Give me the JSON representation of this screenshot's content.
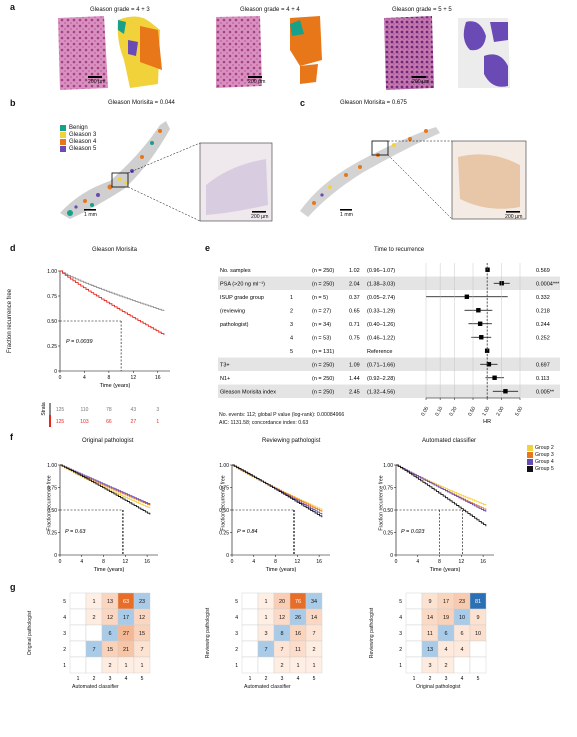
{
  "colors": {
    "benign": "#17a08a",
    "g3": "#f2d23a",
    "g4": "#e8771a",
    "g5": "#6a4bb5",
    "red": "#e8261e",
    "grey": "#8c8c8c",
    "he": "#b7508f"
  },
  "panel_a": {
    "label": "a",
    "titles": [
      "Gleason grade = 4 + 3",
      "Gleason grade = 4 + 4",
      "Gleason grade = 5 + 5"
    ],
    "scale": "200 µm"
  },
  "panel_b": {
    "label": "b",
    "title": "Gleason Morisita = 0.044",
    "legend": [
      "Benign",
      "Gleason 3",
      "Gleason 4",
      "Gleason 5"
    ],
    "scale_main": "1 mm",
    "scale_inset": "200 µm"
  },
  "panel_c": {
    "label": "c",
    "title": "Gleason Morisita = 0.675",
    "scale_main": "1 mm",
    "scale_inset": "200 µm"
  },
  "panel_d": {
    "label": "d",
    "title": "Gleason Morisita",
    "ylabel": "Fraction recurrence free",
    "xlabel": "Time (years)",
    "pvalue": "P = 0.0039",
    "strata_label": "Strata",
    "yticks": [
      "0",
      "0.25",
      "0.50",
      "0.75",
      "1.00"
    ],
    "xticks": [
      "0",
      "4",
      "8",
      "12",
      "16"
    ],
    "risk_grey": [
      "125",
      "110",
      "78",
      "43",
      "3"
    ],
    "risk_red": [
      "125",
      "103",
      "66",
      "27",
      "1"
    ]
  },
  "panel_e": {
    "label": "e",
    "title": "Time to recurrence",
    "xlabel": "HR",
    "rows": [
      {
        "name": "No. samples",
        "sub": "",
        "n": "(n = 250)",
        "hr": "1.02",
        "ci": "(0.96–1.07)",
        "p": "0.569",
        "shade": false,
        "est": 1.02,
        "lo": 0.96,
        "hi": 1.07
      },
      {
        "name": "PSA (>20 ng ml⁻¹)",
        "sub": "",
        "n": "(n = 250)",
        "hr": "2.04",
        "ci": "(1.38–3.03)",
        "p": "0.0004***",
        "shade": true,
        "est": 2.04,
        "lo": 1.38,
        "hi": 3.03
      },
      {
        "name": "ISUP grade group",
        "sub": "1",
        "n": "(n = 5)",
        "hr": "0.37",
        "ci": "(0.05–2.74)",
        "p": "0.332",
        "shade": false,
        "est": 0.37,
        "lo": 0.05,
        "hi": 2.74
      },
      {
        "name": "(reviewing",
        "sub": "2",
        "n": "(n = 27)",
        "hr": "0.65",
        "ci": "(0.33–1.29)",
        "p": "0.218",
        "shade": false,
        "est": 0.65,
        "lo": 0.33,
        "hi": 1.29
      },
      {
        "name": "pathologist)",
        "sub": "3",
        "n": "(n = 34)",
        "hr": "0.71",
        "ci": "(0.40–1.26)",
        "p": "0.244",
        "shade": false,
        "est": 0.71,
        "lo": 0.4,
        "hi": 1.26
      },
      {
        "name": "",
        "sub": "4",
        "n": "(n = 53)",
        "hr": "0.75",
        "ci": "(0.46–1.22)",
        "p": "0.252",
        "shade": false,
        "est": 0.75,
        "lo": 0.46,
        "hi": 1.22
      },
      {
        "name": "",
        "sub": "5",
        "n": "(n = 131)",
        "hr": "",
        "ci": "Reference",
        "p": "",
        "shade": false,
        "est": 1.0,
        "lo": 1.0,
        "hi": 1.0
      },
      {
        "name": "T3+",
        "sub": "",
        "n": "(n = 250)",
        "hr": "1.09",
        "ci": "(0.71–1.66)",
        "p": "0.697",
        "shade": true,
        "est": 1.09,
        "lo": 0.71,
        "hi": 1.66
      },
      {
        "name": "N1+",
        "sub": "",
        "n": "(n = 250)",
        "hr": "1.44",
        "ci": "(0.92–2.28)",
        "p": "0.113",
        "shade": false,
        "est": 1.44,
        "lo": 0.92,
        "hi": 2.28
      },
      {
        "name": "Gleason Morisita index",
        "sub": "",
        "n": "(n = 250)",
        "hr": "2.45",
        "ci": "(1.32–4.56)",
        "p": "0.005**",
        "shade": true,
        "est": 2.45,
        "lo": 1.32,
        "hi": 4.56
      }
    ],
    "xticks": [
      "0.05",
      "0.10",
      "0.20",
      "0.50",
      "1.00",
      "2.00",
      "5.00"
    ],
    "footer1": "No. events: 112; global P value (log-rank): 0.00084966",
    "footer2": "AIC: 1131.58; concordance index: 0.63"
  },
  "panel_f": {
    "label": "f",
    "titles": [
      "Original pathologist",
      "Reviewing pathologist",
      "Automated classifier"
    ],
    "pvalues": [
      "P = 0.63",
      "P = 0.84",
      "P = 0.023"
    ],
    "ylabel": "Fraction recurrence free",
    "xlabel": "Time (years)",
    "legend": [
      "Group 2",
      "Group 3",
      "Group 4",
      "Group 5"
    ],
    "legend_colors": [
      "#f2d23a",
      "#e8771a",
      "#6a4bb5",
      "#111111"
    ],
    "yticks": [
      "0",
      "0.25",
      "0.50",
      "0.75",
      "1.00"
    ],
    "xticks": [
      "0",
      "4",
      "8",
      "12",
      "16"
    ]
  },
  "panel_g": {
    "label": "g",
    "matrices": [
      {
        "ylabel": "Original pathologist",
        "xlabel": "Automated classifier",
        "rows": [
          [
            "1",
            "13",
            "63",
            "23"
          ],
          [
            "2",
            "12",
            "17",
            "12"
          ],
          [
            "",
            "6",
            "27",
            "15"
          ],
          [
            "7",
            "15",
            "21",
            "7"
          ],
          [
            "",
            "2",
            "1",
            "1"
          ]
        ]
      },
      {
        "ylabel": "Reviewing pathologist",
        "xlabel": "Automated classifier",
        "rows": [
          [
            "1",
            "20",
            "76",
            "34"
          ],
          [
            "1",
            "12",
            "26",
            "14"
          ],
          [
            "3",
            "8",
            "16",
            "7"
          ],
          [
            "7",
            "7",
            "11",
            "2"
          ],
          [
            "",
            "2",
            "1",
            "1"
          ]
        ]
      },
      {
        "ylabel": "Reviewing pathologist",
        "xlabel": "Original pathologist",
        "rows": [
          [
            "9",
            "17",
            "23",
            "81"
          ],
          [
            "14",
            "19",
            "10",
            "9"
          ],
          [
            "11",
            "6",
            "6",
            "10"
          ],
          [
            "13",
            "4",
            "4",
            ""
          ],
          [
            "3",
            "2",
            "",
            ""
          ]
        ]
      }
    ],
    "row_ticks": [
      "5",
      "4",
      "3",
      "2",
      "1"
    ],
    "col_ticks": [
      "1",
      "2",
      "3",
      "4",
      "5"
    ]
  }
}
